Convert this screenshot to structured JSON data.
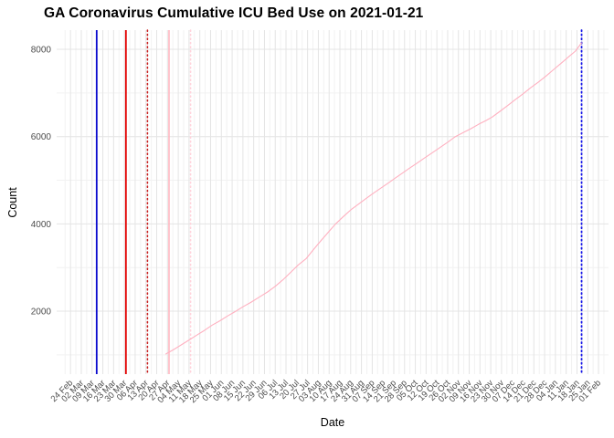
{
  "chart_data": {
    "type": "line",
    "title": "GA Coronavirus Cumulative ICU Bed Use on 2021-01-21",
    "xlabel": "Date",
    "ylabel": "Count",
    "text_color": "#4D4D4D",
    "grid_on": true,
    "grid": {
      "major_color": "#E4E4E4",
      "minor_color": "#F2F2F2"
    },
    "x_axis": {
      "start_date": "2020-02-24",
      "tick_interval_days": 7,
      "range_days": [
        -9,
        349.5
      ],
      "tick_labels": [
        "24 Feb",
        "02 Mar",
        "09 Mar",
        "16 Mar",
        "23 Mar",
        "30 Mar",
        "06 Apr",
        "13 Apr",
        "20 Apr",
        "27 Apr",
        "04 May",
        "11 May",
        "18 May",
        "25 May",
        "01 Jun",
        "08 Jun",
        "15 Jun",
        "22 Jun",
        "29 Jun",
        "06 Jul",
        "13 Jul",
        "20 Jul",
        "27 Jul",
        "03 Aug",
        "10 Aug",
        "17 Aug",
        "24 Aug",
        "31 Aug",
        "07 Sep",
        "14 Sep",
        "21 Sep",
        "28 Sep",
        "05 Oct",
        "12 Oct",
        "19 Oct",
        "26 Oct",
        "02 Nov",
        "09 Nov",
        "16 Nov",
        "23 Nov",
        "30 Nov",
        "07 Dec",
        "14 Dec",
        "21 Dec",
        "28 Dec",
        "04 Jan",
        "11 Jan",
        "18 Jan",
        "25 Jan",
        "01 Feb"
      ]
    },
    "y_axis": {
      "ticks": [
        2000,
        4000,
        6000,
        8000
      ],
      "minor_ticks": [
        1000,
        3000,
        5000,
        7000
      ],
      "range": [
        558,
        8440
      ]
    },
    "ref_lines": [
      {
        "date": "2020-03-12",
        "color": "#0A0ACF",
        "style": "solid",
        "width": 1.8
      },
      {
        "date": "2020-03-31",
        "color": "#E30000",
        "style": "solid",
        "width": 1.8
      },
      {
        "date": "2020-04-14",
        "color": "#C82020",
        "style": "dotted",
        "width": 1.6
      },
      {
        "date": "2020-04-28",
        "color": "#FFB6C1",
        "style": "solid",
        "width": 1.6
      },
      {
        "date": "2020-05-12",
        "color": "#FFD4DC",
        "style": "dotted",
        "width": 1.6
      },
      {
        "date": "2021-01-21",
        "color": "#1414E8",
        "style": "dotted",
        "width": 1.8
      }
    ],
    "series": [
      {
        "name": "cumulative-icu-bed-use",
        "color": "#FFB0C0",
        "width": 1.1,
        "points": [
          [
            "2020-04-26",
            1020
          ],
          [
            "2020-05-01",
            1120
          ],
          [
            "2020-05-06",
            1230
          ],
          [
            "2020-05-11",
            1340
          ],
          [
            "2020-05-16",
            1450
          ],
          [
            "2020-05-21",
            1560
          ],
          [
            "2020-05-26",
            1680
          ],
          [
            "2020-05-31",
            1780
          ],
          [
            "2020-06-05",
            1890
          ],
          [
            "2020-06-10",
            1990
          ],
          [
            "2020-06-15",
            2100
          ],
          [
            "2020-06-20",
            2200
          ],
          [
            "2020-06-26",
            2330
          ],
          [
            "2020-07-01",
            2440
          ],
          [
            "2020-07-06",
            2570
          ],
          [
            "2020-07-11",
            2720
          ],
          [
            "2020-07-16",
            2890
          ],
          [
            "2020-07-21",
            3060
          ],
          [
            "2020-07-26",
            3200
          ],
          [
            "2020-07-31",
            3420
          ],
          [
            "2020-08-05",
            3630
          ],
          [
            "2020-08-10",
            3830
          ],
          [
            "2020-08-14",
            3990
          ],
          [
            "2020-08-19",
            4160
          ],
          [
            "2020-08-24",
            4320
          ],
          [
            "2020-08-29",
            4450
          ],
          [
            "2020-09-03",
            4580
          ],
          [
            "2020-09-08",
            4710
          ],
          [
            "2020-09-13",
            4830
          ],
          [
            "2020-09-18",
            4950
          ],
          [
            "2020-09-22",
            5050
          ],
          [
            "2020-09-26",
            5150
          ],
          [
            "2020-10-01",
            5270
          ],
          [
            "2020-10-06",
            5390
          ],
          [
            "2020-10-11",
            5510
          ],
          [
            "2020-10-16",
            5630
          ],
          [
            "2020-10-21",
            5750
          ],
          [
            "2020-10-26",
            5870
          ],
          [
            "2020-10-31",
            6000
          ],
          [
            "2020-11-05",
            6090
          ],
          [
            "2020-11-10",
            6180
          ],
          [
            "2020-11-15",
            6280
          ],
          [
            "2020-11-20",
            6370
          ],
          [
            "2020-11-24",
            6450
          ],
          [
            "2020-11-29",
            6580
          ],
          [
            "2020-12-04",
            6710
          ],
          [
            "2020-12-09",
            6850
          ],
          [
            "2020-12-14",
            6980
          ],
          [
            "2020-12-19",
            7120
          ],
          [
            "2020-12-24",
            7250
          ],
          [
            "2020-12-29",
            7390
          ],
          [
            "2021-01-03",
            7540
          ],
          [
            "2021-01-08",
            7690
          ],
          [
            "2021-01-13",
            7840
          ],
          [
            "2021-01-17",
            7960
          ],
          [
            "2021-01-21",
            8150
          ]
        ]
      }
    ]
  }
}
